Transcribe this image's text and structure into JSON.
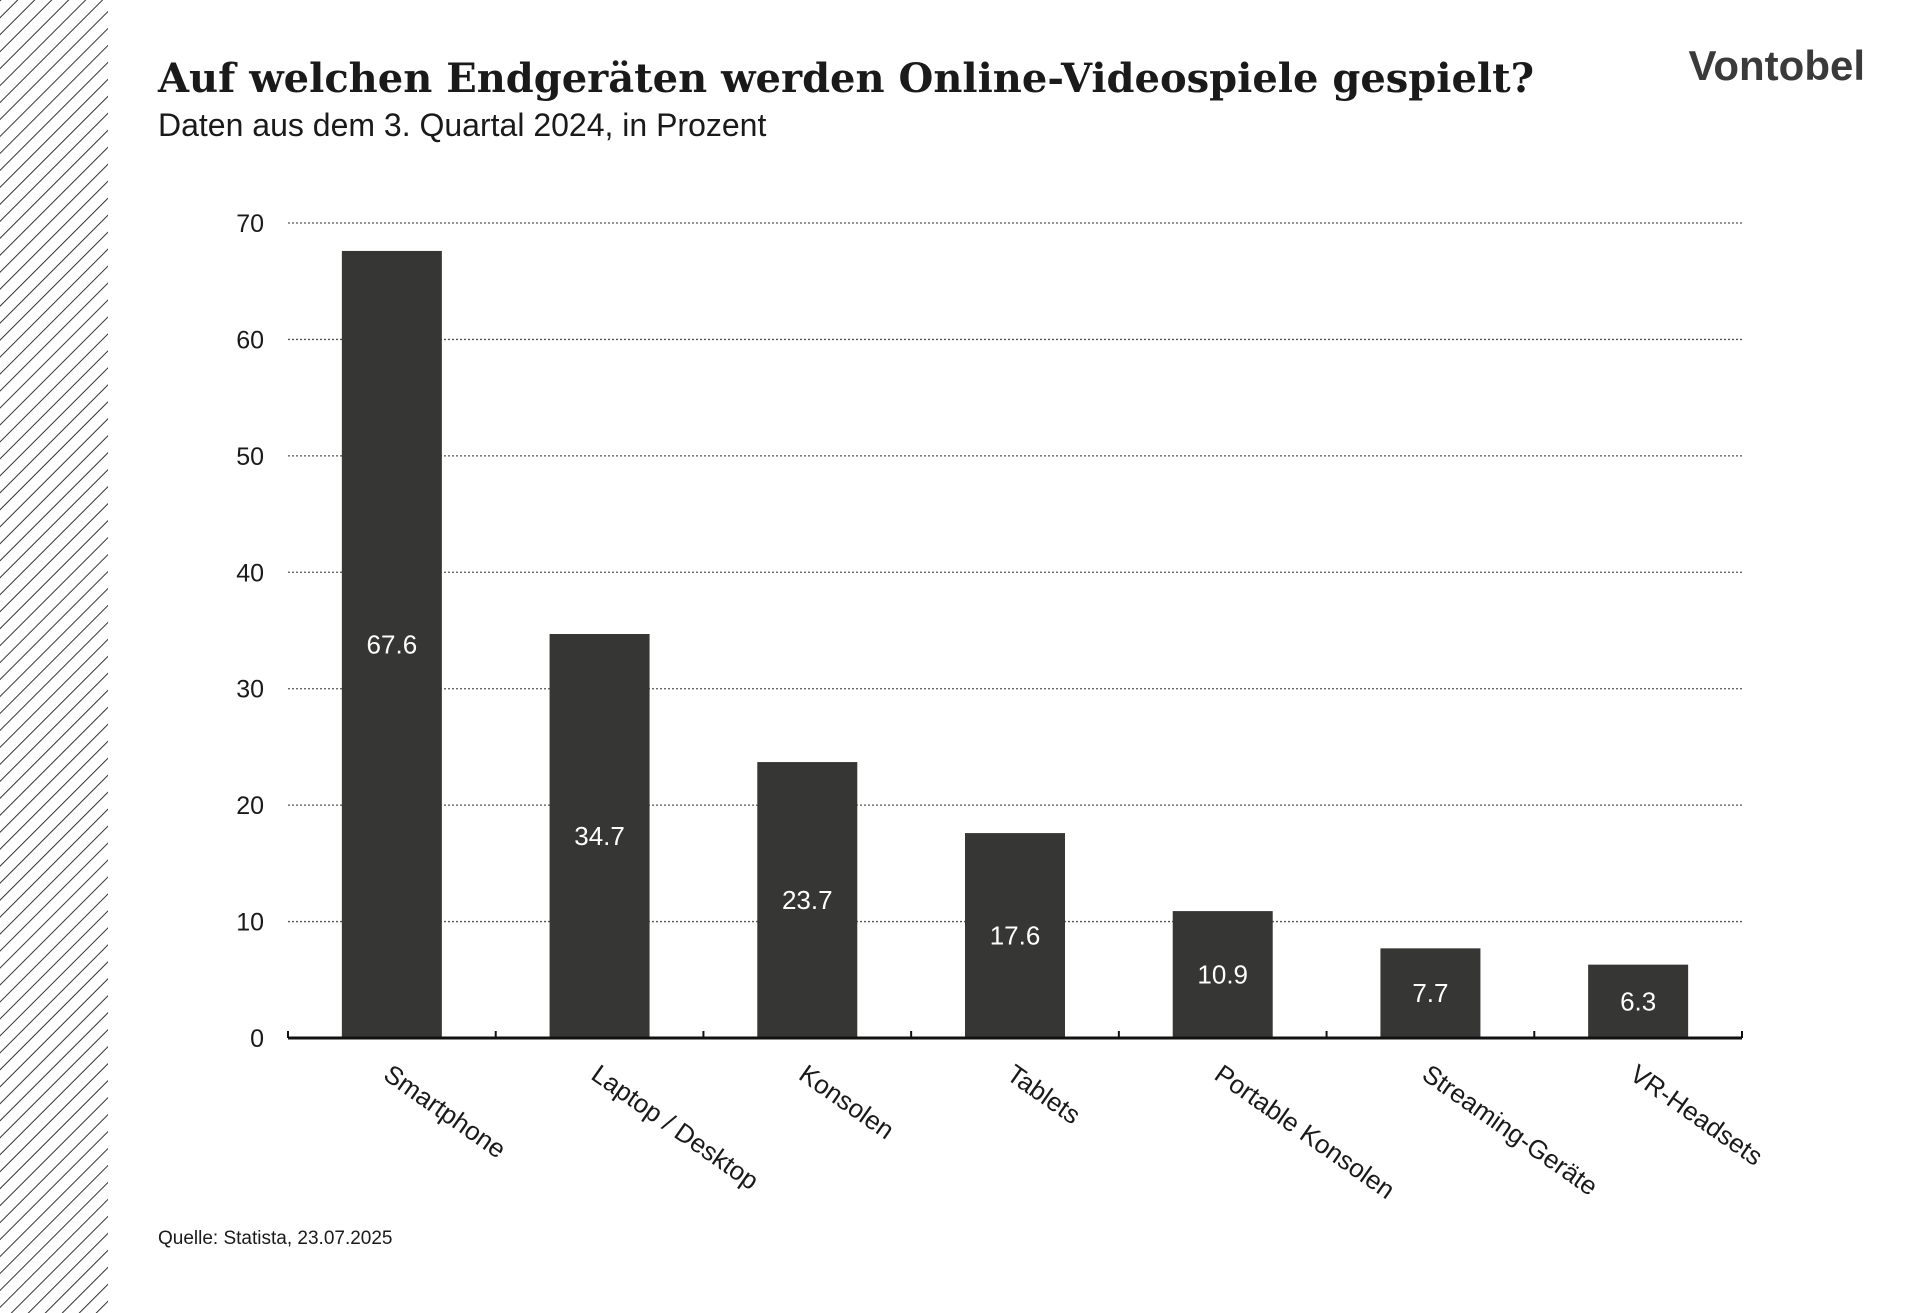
{
  "brand": "Vontobel",
  "source": "Quelle: Statista, 23.07.2025",
  "chart_data": {
    "type": "bar",
    "title": "Auf welchen Endgeräten werden Online-Videospiele gespielt?",
    "subtitle": "Daten aus dem 3. Quartal 2024, in Prozent",
    "categories": [
      "Smartphone",
      "Laptop / Desktop",
      "Konsolen",
      "Tablets",
      "Portable Konsolen",
      "Streaming-Geräte",
      "VR-Headsets"
    ],
    "values": [
      67.6,
      34.7,
      23.7,
      17.6,
      10.9,
      7.7,
      6.3
    ],
    "color": "#363734",
    "ylim": [
      0,
      70
    ],
    "yticks": [
      0,
      10,
      20,
      30,
      40,
      50,
      60,
      70
    ],
    "grid": true
  }
}
